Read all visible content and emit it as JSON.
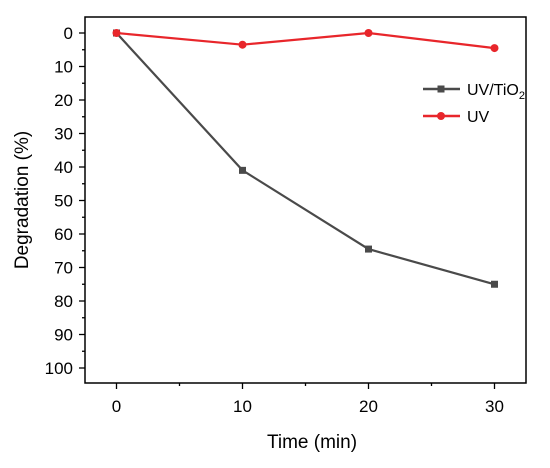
{
  "chart_data": {
    "type": "line",
    "xlabel": "Time (min)",
    "ylabel": "Degradation (%)",
    "xlim": [
      -2.5,
      32.5
    ],
    "ylim": [
      0,
      105
    ],
    "y_inverted": true,
    "x_ticks": [
      0,
      10,
      20,
      30
    ],
    "y_ticks": [
      0,
      10,
      20,
      30,
      40,
      50,
      60,
      70,
      80,
      90,
      100
    ],
    "legend_position": "top-right",
    "grid": false,
    "series": [
      {
        "name": "UV/TiO",
        "name_subscript": "2",
        "color": "#4a4a4a",
        "marker": "square",
        "x": [
          0,
          10,
          20,
          30
        ],
        "y": [
          0,
          41,
          64.5,
          75
        ]
      },
      {
        "name": "UV",
        "color": "#e8262b",
        "marker": "circle",
        "x": [
          0,
          10,
          20,
          30
        ],
        "y": [
          0,
          3.5,
          0,
          4.5
        ]
      }
    ]
  }
}
